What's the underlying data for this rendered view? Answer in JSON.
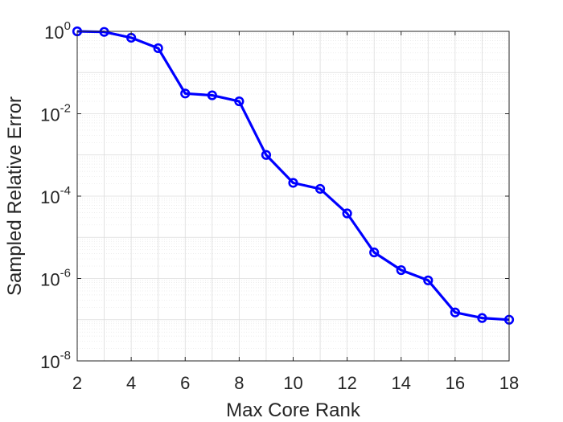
{
  "chart_data": {
    "type": "line",
    "xlabel": "Max Core Rank",
    "ylabel": "Sampled Relative Error",
    "xlim": [
      2,
      18
    ],
    "ylim": [
      1e-08,
      1
    ],
    "yscale": "log",
    "grid": true,
    "minor_grid": true,
    "xticks": [
      2,
      4,
      6,
      8,
      10,
      12,
      14,
      16,
      18
    ],
    "yticks": [
      {
        "base": "10",
        "exp": "-8",
        "value": 1e-08
      },
      {
        "base": "10",
        "exp": "-6",
        "value": 1e-06
      },
      {
        "base": "10",
        "exp": "-4",
        "value": 0.0001
      },
      {
        "base": "10",
        "exp": "-2",
        "value": 0.01
      },
      {
        "base": "10",
        "exp": "0",
        "value": 1
      }
    ],
    "series": [
      {
        "color": "#0000ff",
        "marker": "circle",
        "x": [
          2,
          3,
          4,
          5,
          6,
          7,
          8,
          9,
          10,
          11,
          12,
          13,
          14,
          15,
          16,
          17,
          18
        ],
        "y": [
          1.0,
          0.97,
          0.7,
          0.39,
          0.031,
          0.028,
          0.02,
          0.001,
          0.00021,
          0.00015,
          3.8e-05,
          4.3e-06,
          1.6e-06,
          9e-07,
          1.5e-07,
          1.1e-07,
          1e-07
        ]
      }
    ]
  }
}
